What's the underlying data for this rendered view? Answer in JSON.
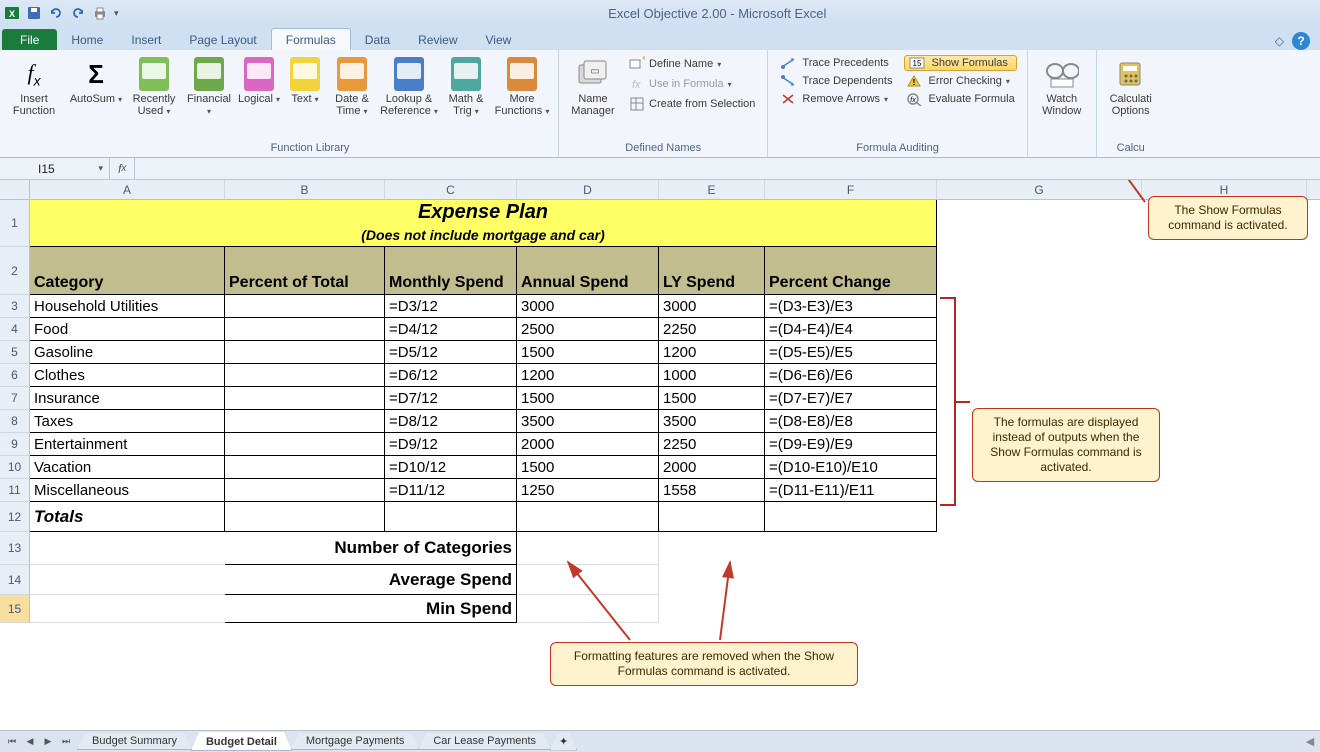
{
  "app": {
    "title": "Excel Objective 2.00 - Microsoft Excel"
  },
  "tabs": {
    "file": "File",
    "home": "Home",
    "insert": "Insert",
    "pagelayout": "Page Layout",
    "formulas": "Formulas",
    "data": "Data",
    "review": "Review",
    "view": "View"
  },
  "ribbon": {
    "group_fnlib": "Function Library",
    "group_defnames": "Defined Names",
    "group_fmlaudit": "Formula Auditing",
    "group_calc": "Calcu",
    "insert_function": "Insert\nFunction",
    "autosum": "AutoSum",
    "recently_used": "Recently\nUsed",
    "financial": "Financial",
    "logical": "Logical",
    "text": "Text",
    "datetime": "Date &\nTime",
    "lookup": "Lookup &\nReference",
    "mathtrig": "Math &\nTrig",
    "morefn": "More\nFunctions",
    "name_mgr": "Name\nManager",
    "define_name": "Define Name",
    "use_in_formula": "Use in Formula",
    "create_sel": "Create from Selection",
    "trace_prec": "Trace Precedents",
    "trace_dep": "Trace Dependents",
    "remove_arrows": "Remove Arrows",
    "show_formulas": "Show Formulas",
    "error_check": "Error Checking",
    "eval_formula": "Evaluate Formula",
    "watch_window": "Watch\nWindow",
    "calc_options": "Calculati\nOptions"
  },
  "namebox": "I15",
  "cols": {
    "A": 195,
    "B": 160,
    "C": 132,
    "D": 142,
    "E": 106,
    "F": 172,
    "G": 205,
    "H": 165
  },
  "sheet": {
    "title": "Expense Plan",
    "subtitle": "(Does not include mortgage and car)",
    "headers": {
      "A": "Category",
      "B": "Percent of Total",
      "C": "Monthly Spend",
      "D": "Annual Spend",
      "E": "LY Spend",
      "F": "Percent Change"
    },
    "rows": [
      {
        "cat": "Household Utilities",
        "c": "=D3/12",
        "d": "3000",
        "e": "3000",
        "f": "=(D3-E3)/E3"
      },
      {
        "cat": "Food",
        "c": "=D4/12",
        "d": "2500",
        "e": "2250",
        "f": "=(D4-E4)/E4"
      },
      {
        "cat": "Gasoline",
        "c": "=D5/12",
        "d": "1500",
        "e": "1200",
        "f": "=(D5-E5)/E5"
      },
      {
        "cat": "Clothes",
        "c": "=D6/12",
        "d": "1200",
        "e": "1000",
        "f": "=(D6-E6)/E6"
      },
      {
        "cat": "Insurance",
        "c": "=D7/12",
        "d": "1500",
        "e": "1500",
        "f": "=(D7-E7)/E7"
      },
      {
        "cat": "Taxes",
        "c": "=D8/12",
        "d": "3500",
        "e": "3500",
        "f": "=(D8-E8)/E8"
      },
      {
        "cat": "Entertainment",
        "c": "=D9/12",
        "d": "2000",
        "e": "2250",
        "f": "=(D9-E9)/E9"
      },
      {
        "cat": "Vacation",
        "c": "=D10/12",
        "d": "1500",
        "e": "2000",
        "f": "=(D10-E10)/E10"
      },
      {
        "cat": "Miscellaneous",
        "c": "=D11/12",
        "d": "1250",
        "e": "1558",
        "f": "=(D11-E11)/E11"
      }
    ],
    "totals": "Totals",
    "numcat": "Number of Categories",
    "avgspend": "Average Spend",
    "minspend": "Min Spend"
  },
  "callouts": {
    "c1": "The Show Formulas command is activated.",
    "c2": "The formulas are displayed instead of outputs when the Show Formulas command is activated.",
    "c3": "Formatting features are removed when the Show Formulas command is activated."
  },
  "sheets": {
    "s1": "Budget Summary",
    "s2": "Budget Detail",
    "s3": "Mortgage Payments",
    "s4": "Car Lease Payments"
  },
  "style": {
    "title_bg": "#ffff66",
    "header_bg": "#c1bd8f",
    "callout_bg": "#fff2cf",
    "callout_border": "#c23616",
    "arrow_color": "#c0392b",
    "bracket_color": "#b02a1f",
    "row_h1": 30,
    "row_h2": 48,
    "row_data": 23,
    "row_tall": 33
  }
}
